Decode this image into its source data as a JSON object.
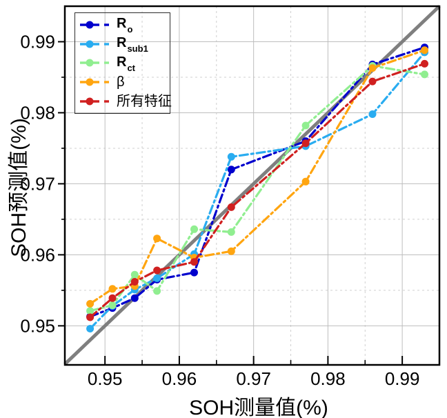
{
  "chart_data": {
    "type": "line",
    "title": "",
    "xlabel": "SOH测量值(%)",
    "ylabel": "SOH预测值(%)",
    "legend_position": "top-left",
    "x": [
      0.948,
      0.951,
      0.954,
      0.957,
      0.962,
      0.967,
      0.977,
      0.986,
      0.993
    ],
    "series": [
      {
        "name": "Ro",
        "label_main": "R",
        "label_sub": "o",
        "color": "#0000CD",
        "values": [
          0.9513,
          0.9525,
          0.9539,
          0.9565,
          0.9575,
          0.972,
          0.976,
          0.9868,
          0.9892
        ]
      },
      {
        "name": "Rsub1",
        "label_main": "R",
        "label_sub": "sub1",
        "color": "#29ACF0",
        "values": [
          0.9496,
          0.9528,
          0.9551,
          0.9567,
          0.9601,
          0.9738,
          0.9753,
          0.9798,
          0.9885
        ]
      },
      {
        "name": "Rct",
        "label_main": "R",
        "label_sub": "ct",
        "color": "#90EE90",
        "values": [
          0.9521,
          0.9529,
          0.9572,
          0.9549,
          0.9636,
          0.9632,
          0.9782,
          0.9866,
          0.9854
        ]
      },
      {
        "name": "beta",
        "label_main": "β",
        "label_sub": "",
        "color": "#FFA510",
        "values": [
          0.9531,
          0.9552,
          0.9556,
          0.9623,
          0.9596,
          0.9605,
          0.9703,
          0.9863,
          0.9888
        ]
      },
      {
        "name": "all-features",
        "label_main": "所有特征",
        "label_sub": "",
        "color": "#D02020",
        "values": [
          0.9512,
          0.9539,
          0.9562,
          0.9578,
          0.959,
          0.9667,
          0.9757,
          0.9844,
          0.9869
        ]
      }
    ],
    "reference_line": {
      "type": "y = x",
      "color": "#7F7F7F"
    },
    "axes": {
      "x": {
        "min": 0.9446,
        "max": 0.995,
        "major_ticks": [
          0.95,
          0.96,
          0.97,
          0.98,
          0.99
        ],
        "tick_labels": [
          "0.95",
          "0.96",
          "0.97",
          "0.98",
          "0.99"
        ],
        "minor_ticks": [
          0.955,
          0.965,
          0.975,
          0.985
        ]
      },
      "y": {
        "min": 0.9445,
        "max": 0.995,
        "major_ticks": [
          0.95,
          0.96,
          0.97,
          0.98,
          0.99
        ],
        "tick_labels": [
          "0.95",
          "0.96",
          "0.97",
          "0.98",
          "0.99"
        ],
        "minor_ticks": [
          0.955,
          0.965,
          0.975,
          0.985
        ]
      }
    },
    "grid": {
      "major_style": "solid",
      "minor_style": "dashed",
      "major_color": "#BDBDBD",
      "minor_color": "#CFCFCF"
    }
  }
}
